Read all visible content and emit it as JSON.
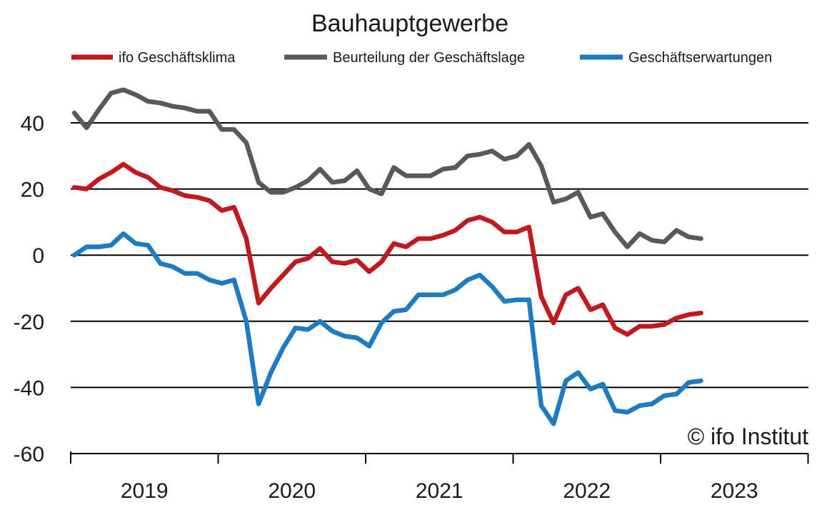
{
  "chart_data": {
    "type": "line",
    "title": "Bauhauptgewerbe",
    "xlabel": "",
    "ylabel": "",
    "ylim": [
      -60,
      50
    ],
    "yticks": [
      40,
      20,
      0,
      -20,
      -40,
      -60
    ],
    "ytick_labels": [
      "40",
      "20",
      "0",
      "-20",
      "-40",
      "-60"
    ],
    "x_year_labels": [
      "2019",
      "2020",
      "2021",
      "2022",
      "2023"
    ],
    "x_range_months": [
      "2019-01",
      "2023-12"
    ],
    "grid": "horizontal",
    "legend_position": "top",
    "credit": "© ifo Institut",
    "x": [
      "2019-01",
      "2019-02",
      "2019-03",
      "2019-04",
      "2019-05",
      "2019-06",
      "2019-07",
      "2019-08",
      "2019-09",
      "2019-10",
      "2019-11",
      "2019-12",
      "2020-01",
      "2020-02",
      "2020-03",
      "2020-04",
      "2020-05",
      "2020-06",
      "2020-07",
      "2020-08",
      "2020-09",
      "2020-10",
      "2020-11",
      "2020-12",
      "2021-01",
      "2021-02",
      "2021-03",
      "2021-04",
      "2021-05",
      "2021-06",
      "2021-07",
      "2021-08",
      "2021-09",
      "2021-10",
      "2021-11",
      "2021-12",
      "2022-01",
      "2022-02",
      "2022-03",
      "2022-04",
      "2022-05",
      "2022-06",
      "2022-07",
      "2022-08",
      "2022-09",
      "2022-10",
      "2022-11",
      "2022-12",
      "2023-01",
      "2023-02",
      "2023-03",
      "2023-04"
    ],
    "series": [
      {
        "name": "ifo Geschäftsklima",
        "color": "#c0191e",
        "values": [
          20.5,
          20,
          23,
          25,
          27.5,
          25,
          23.5,
          20.5,
          19.5,
          18,
          17.5,
          16.5,
          13.5,
          14.5,
          5,
          -14.5,
          -10,
          -6,
          -2,
          -1,
          2,
          -2,
          -2.5,
          -1.5,
          -5,
          -2,
          3.5,
          2.5,
          5,
          5,
          6,
          7.5,
          10.5,
          11.5,
          10,
          7,
          7,
          8.5,
          -12.5,
          -20.5,
          -12,
          -10,
          -16.5,
          -15,
          -22,
          -24,
          -21.5,
          -21.5,
          -21,
          -19,
          -18,
          -17.5
        ]
      },
      {
        "name": "Beurteilung der Geschäftslage",
        "color": "#595959",
        "values": [
          43,
          38.5,
          44,
          49,
          50,
          48.5,
          46.5,
          46,
          45,
          44.5,
          43.5,
          43.5,
          38,
          38,
          34,
          22,
          19,
          19,
          20.5,
          22.5,
          26,
          22,
          22.5,
          25.5,
          20,
          18.5,
          26.5,
          24,
          24,
          24,
          26,
          26.5,
          30,
          30.5,
          31.5,
          29,
          30,
          33.5,
          27,
          16,
          17,
          19,
          11.5,
          12.5,
          7,
          2.5,
          6.5,
          4.5,
          4,
          7.5,
          5.5,
          5
        ]
      },
      {
        "name": "Geschäftserwartungen",
        "color": "#1f7bc1",
        "values": [
          0,
          2.5,
          2.5,
          3,
          6.5,
          3.5,
          3,
          -2.5,
          -3.5,
          -5.5,
          -5.5,
          -7.5,
          -8.5,
          -7.5,
          -20,
          -45,
          -35.5,
          -28,
          -22,
          -22.5,
          -20,
          -23,
          -24.5,
          -25,
          -27.5,
          -20.5,
          -17,
          -16.5,
          -12,
          -12,
          -12,
          -10.5,
          -7.5,
          -6,
          -9.5,
          -14,
          -13.5,
          -13.5,
          -45.5,
          -51,
          -38,
          -35.5,
          -40.5,
          -39,
          -47,
          -47.5,
          -45.5,
          -45,
          -42.5,
          -42,
          -38.5,
          -38
        ]
      }
    ]
  }
}
